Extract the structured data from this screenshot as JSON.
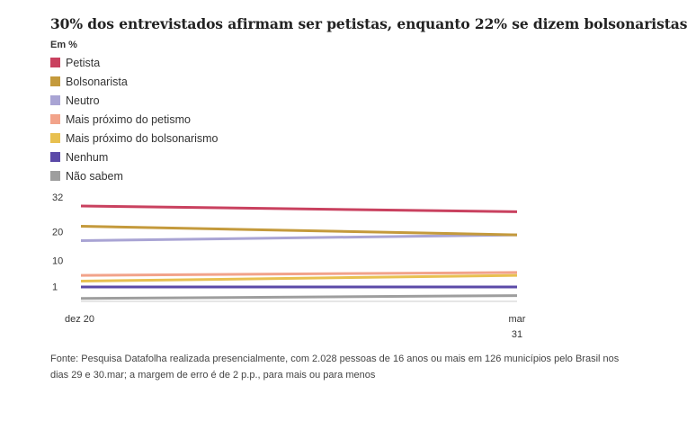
{
  "title": "30% dos entrevistados afirmam ser petistas, enquanto 22% se dizem bolsonaristas",
  "unit_label": "Em %",
  "colors": {
    "Petista": "#c9415f",
    "Bolsonarista": "#c49a3c",
    "Neutro": "#a9a4d4",
    "Mais próximo do petismo": "#f2a38a",
    "Mais próximo do bolsonarismo": "#e8c050",
    "Nenhum": "#5b4aa8",
    "Não sabem": "#9e9e9e"
  },
  "source": "Fonte: Pesquisa Datafolha realizada presencialmente, com 2.028 pessoas de 16 anos ou mais em 126 municípios pelo Brasil nos dias 29 e 30.mar; a margem de erro é de 2 p.p., para mais ou para menos",
  "chart_data": {
    "type": "line",
    "title": "30% dos entrevistados afirmam ser petistas, enquanto 22% se dizem bolsonaristas",
    "ylabel": "Em %",
    "x": [
      "dez 20",
      "mar 31"
    ],
    "x_tick_labels": [
      [
        "dez 20"
      ],
      [
        "mar",
        "31"
      ]
    ],
    "y_ticks": [
      1,
      10,
      20,
      32
    ],
    "ylim": [
      -1,
      32
    ],
    "grid": false,
    "legend_position": "top-left",
    "series": [
      {
        "name": "Petista",
        "values": [
          32,
          30
        ]
      },
      {
        "name": "Bolsonarista",
        "values": [
          25,
          22
        ]
      },
      {
        "name": "Neutro",
        "values": [
          20,
          22
        ]
      },
      {
        "name": "Mais próximo do petismo",
        "values": [
          8,
          9
        ]
      },
      {
        "name": "Mais próximo do bolsonarismo",
        "values": [
          6,
          8
        ]
      },
      {
        "name": "Nenhum",
        "values": [
          4,
          4
        ]
      },
      {
        "name": "Não sabem",
        "values": [
          0,
          1
        ]
      }
    ]
  }
}
